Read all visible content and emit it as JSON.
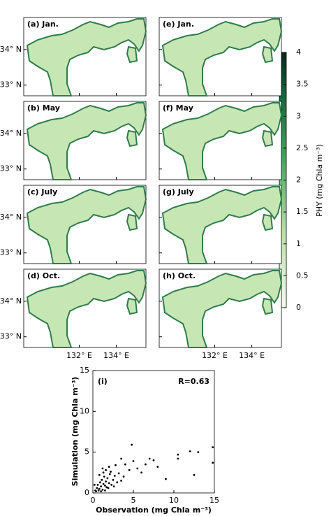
{
  "maps": {
    "panels": [
      "(a) Jan.",
      "(b) May",
      "(c) July",
      "(d) Oct.",
      "(e) Jan.",
      "(f) May",
      "(g) July",
      "(h) Oct."
    ],
    "xlim": [
      129,
      135.6
    ],
    "ylim": [
      32.7,
      34.9
    ],
    "xticks": [
      {
        "value": 132,
        "label": "132° E"
      },
      {
        "value": 134,
        "label": "134° E"
      }
    ],
    "yticks": [
      {
        "value": 34,
        "label": "34° N"
      },
      {
        "value": 33,
        "label": "33° N"
      }
    ]
  },
  "colorbar": {
    "label": "PHY (mg Chla m⁻³)",
    "ylim": [
      0,
      4
    ],
    "yticks": [
      0,
      0.5,
      1,
      1.5,
      2,
      2.5,
      3,
      3.5,
      4
    ]
  },
  "chart_data": {
    "type": "scatter",
    "title": "(i)",
    "annotation": "R=0.63",
    "x_label": "Observation (mg Chla m⁻³)",
    "y_label": "Simulation (mg Chla m⁻³)",
    "color": "#000000",
    "x": [
      0.3,
      0.5,
      0.6,
      0.8,
      0.9,
      1.0,
      1.1,
      1.2,
      1.3,
      1.4,
      1.5,
      1.6,
      1.7,
      1.8,
      2.0,
      2.1,
      2.3,
      2.5,
      2.7,
      3.0,
      0.4,
      0.7,
      1.0,
      1.3,
      1.6,
      1.9,
      2.2,
      2.6,
      3.2,
      3.5,
      0.2,
      0.8,
      1.2,
      1.5,
      2.0,
      2.8,
      3.8,
      4.0,
      3.5,
      4.5,
      4.8,
      5.0,
      5.5,
      6.0,
      6.5,
      7.0,
      7.5,
      8.0,
      9.0,
      10.5,
      10.5,
      12.0,
      12.5,
      13.0,
      14.8,
      14.8
    ],
    "y": [
      0.3,
      0.6,
      1.0,
      0.5,
      1.3,
      0.8,
      1.6,
      0.4,
      1.1,
      2.0,
      0.9,
      1.4,
      0.7,
      1.8,
      1.2,
      2.3,
      1.0,
      1.6,
      2.1,
      1.3,
      0.2,
      0.3,
      0.2,
      2.5,
      2.8,
      0.6,
      2.6,
      0.8,
      2.4,
      1.5,
      1.0,
      2.2,
      3.0,
      0.3,
      3.2,
      3.4,
      2.0,
      3.5,
      4.2,
      2.8,
      5.9,
      3.9,
      3.0,
      2.5,
      3.5,
      4.2,
      4.0,
      3.2,
      1.7,
      4.7,
      4.2,
      5.1,
      2.2,
      5.0,
      5.6,
      3.7
    ],
    "xlim": [
      0,
      15
    ],
    "ylim": [
      0,
      15
    ],
    "xticks": [
      0,
      5,
      10,
      15
    ],
    "yticks": [
      0,
      5,
      10,
      15
    ]
  }
}
